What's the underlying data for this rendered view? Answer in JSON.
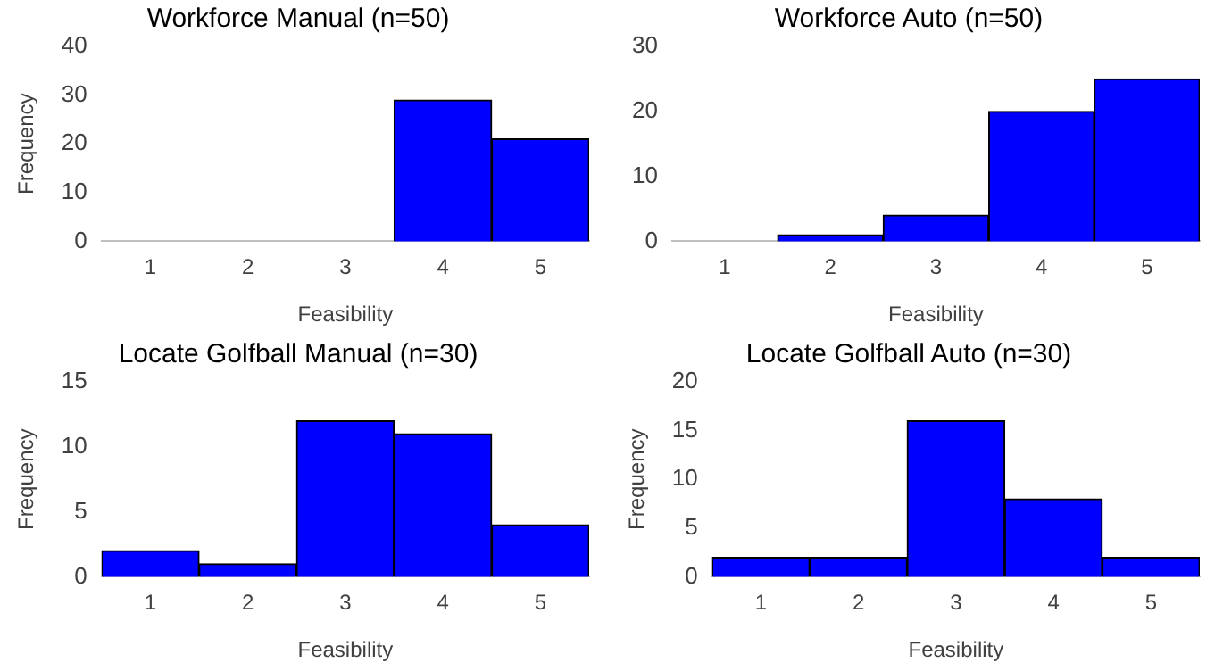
{
  "chart_data": [
    {
      "type": "bar",
      "title": "Workforce Manual (n=50)",
      "xlabel": "Feasibility",
      "ylabel": "Frequency",
      "categories": [
        "1",
        "2",
        "3",
        "4",
        "5"
      ],
      "values": [
        0,
        0,
        0,
        29,
        21
      ],
      "color": "#0000ff",
      "ylim": [
        0,
        40
      ],
      "yticks": [
        0,
        10,
        20,
        30,
        40
      ],
      "grid": false
    },
    {
      "type": "bar",
      "title": "Workforce Auto (n=50)",
      "xlabel": "Feasibility",
      "categories": [
        "1",
        "2",
        "3",
        "4",
        "5"
      ],
      "values": [
        0,
        1,
        4,
        20,
        25
      ],
      "color": "#0000ff",
      "ylim": [
        0,
        30
      ],
      "yticks": [
        0,
        10,
        20,
        30
      ],
      "grid": false
    },
    {
      "type": "bar",
      "title": "Locate Golfball Manual (n=30)",
      "xlabel": "Feasibility",
      "ylabel": "Frequency",
      "categories": [
        "1",
        "2",
        "3",
        "4",
        "5"
      ],
      "values": [
        2,
        1,
        12,
        11,
        4
      ],
      "color": "#0000ff",
      "ylim": [
        0,
        15
      ],
      "yticks": [
        0,
        5,
        10,
        15
      ],
      "grid": false
    },
    {
      "type": "bar",
      "title": "Locate Golfball Auto (n=30)",
      "xlabel": "Feasibility",
      "ylabel": "Frequency",
      "categories": [
        "1",
        "2",
        "3",
        "4",
        "5"
      ],
      "values": [
        2,
        2,
        16,
        8,
        2
      ],
      "color": "#0000ff",
      "ylim": [
        0,
        20
      ],
      "yticks": [
        0,
        5,
        10,
        15,
        20
      ],
      "grid": false
    }
  ]
}
